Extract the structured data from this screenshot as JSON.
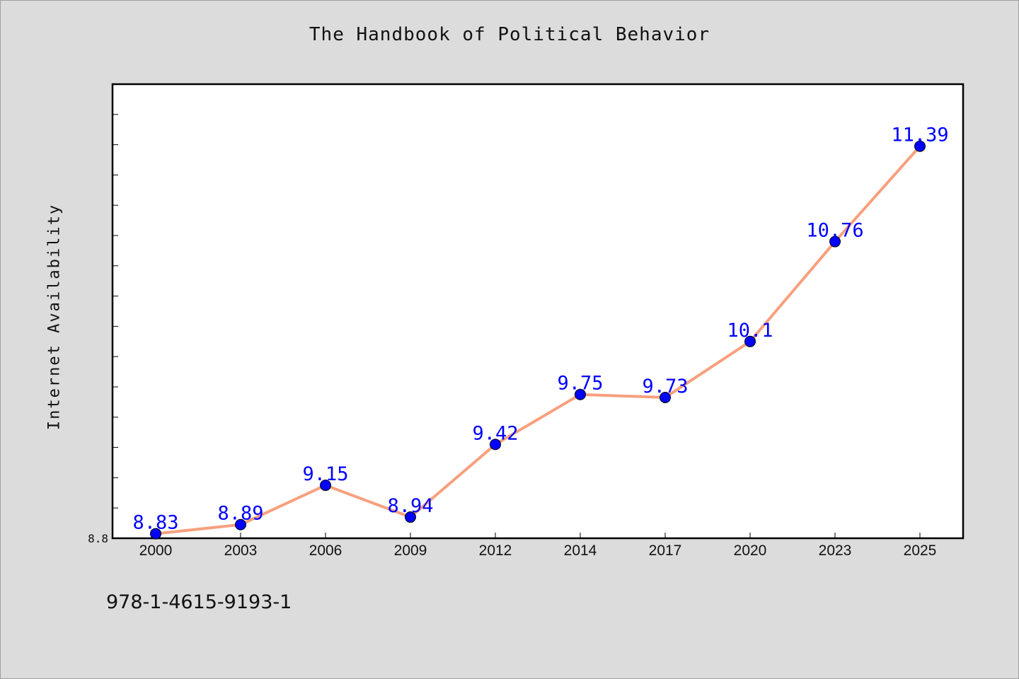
{
  "colors": {
    "background": "#dcdcdc",
    "plot_background": "#ffffff",
    "line": "#f7a07e",
    "marker": "#0000ff",
    "label": "#0000ff"
  },
  "footer": {
    "code": "978-1-4615-9193-1"
  },
  "chart_data": {
    "type": "line",
    "title": "The Handbook of Political Behavior",
    "xlabel": "",
    "ylabel": "Internet Availability",
    "categories": [
      "2000",
      "2003",
      "2006",
      "2009",
      "2012",
      "2014",
      "2017",
      "2020",
      "2023",
      "2025"
    ],
    "series": [
      {
        "values": [
          8.83,
          8.89,
          9.15,
          8.94,
          9.42,
          9.75,
          9.73,
          10.1,
          10.76,
          11.39
        ]
      }
    ],
    "data_labels": [
      "8.83",
      "8.89",
      "9.15",
      "8.94",
      "9.42",
      "9.75",
      "9.73",
      "10.1",
      "10.76",
      "11.39"
    ],
    "ylim": [
      8.8,
      11.8
    ],
    "y_tick_labels": [
      "8.8"
    ],
    "grid": false,
    "legend": "none"
  }
}
